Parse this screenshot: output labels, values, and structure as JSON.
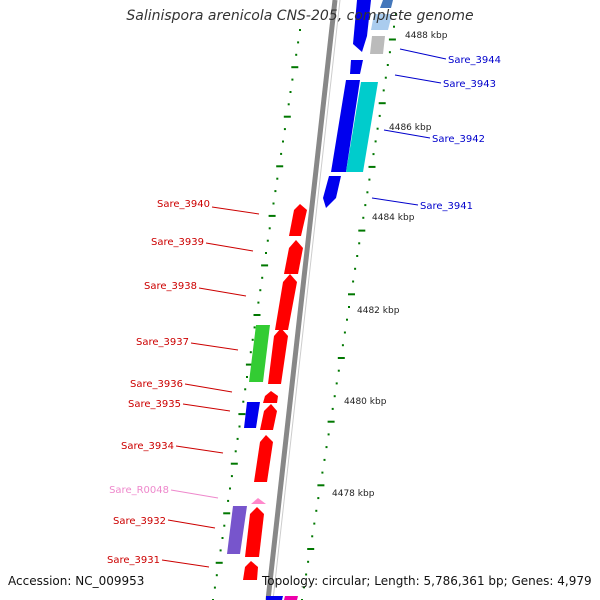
{
  "title": "Salinispora arenicola CNS-205, complete genome",
  "accession": "Accession: NC_009953",
  "topology": "Topology: circular; Length: 5,786,361 bp; Genes: 4,979",
  "colors": {
    "forward": "#ff0000",
    "reverse": "#0000ff",
    "rna": "#ff88cc",
    "backbone": "#888888",
    "ticks": "#007700"
  },
  "scale_labels": [
    "4488 kbp",
    "4486 kbp",
    "4484 kbp",
    "4482 kbp",
    "4480 kbp",
    "4478 kbp"
  ],
  "genes_right": [
    {
      "label": "Sare_3944",
      "color": "#0000cc"
    },
    {
      "label": "Sare_3943",
      "color": "#0000cc"
    },
    {
      "label": "Sare_3942",
      "color": "#0000cc"
    },
    {
      "label": "Sare_3941",
      "color": "#0000cc"
    }
  ],
  "genes_left": [
    {
      "label": "Sare_3940",
      "color": "#cc0000"
    },
    {
      "label": "Sare_3939",
      "color": "#cc0000"
    },
    {
      "label": "Sare_3938",
      "color": "#cc0000"
    },
    {
      "label": "Sare_3937",
      "color": "#cc0000"
    },
    {
      "label": "Sare_3936",
      "color": "#cc0000"
    },
    {
      "label": "Sare_3935",
      "color": "#cc0000"
    },
    {
      "label": "Sare_3934",
      "color": "#cc0000"
    },
    {
      "label": "Sare_R0048",
      "color": "#ee88cc"
    },
    {
      "label": "Sare_3932",
      "color": "#cc0000"
    },
    {
      "label": "Sare_3931",
      "color": "#cc0000"
    }
  ]
}
